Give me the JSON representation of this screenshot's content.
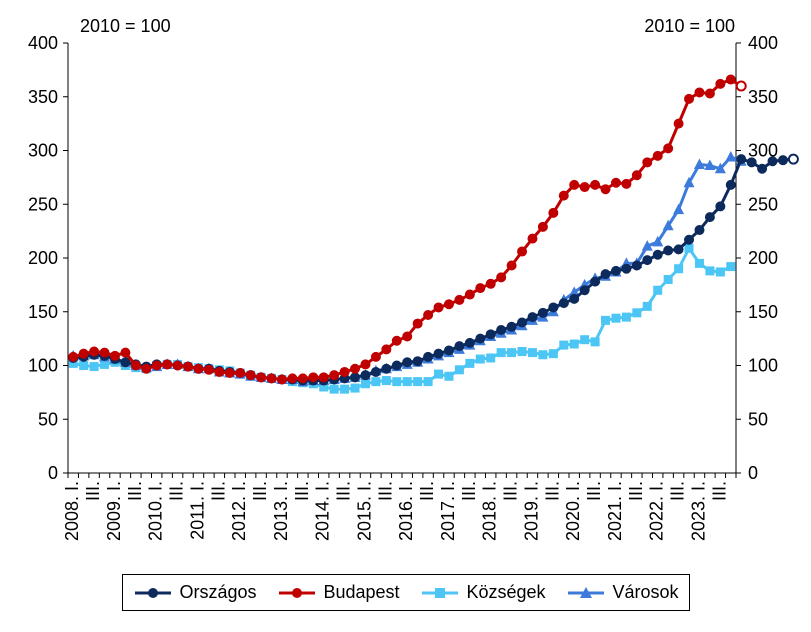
{
  "chart_data": {
    "type": "line",
    "title": "",
    "index_label_left": "2010 = 100",
    "index_label_right": "2010 = 100",
    "ylim": [
      0,
      400
    ],
    "yticks": [
      0,
      50,
      100,
      150,
      200,
      250,
      300,
      350,
      400
    ],
    "year_labels": [
      "2008. I.",
      "2009. I.",
      "2010. I.",
      "2011. I.",
      "2012. I.",
      "2013. I.",
      "2014. I.",
      "2015. I.",
      "2016. I.",
      "2017. I.",
      "2018. I.",
      "2019. I.",
      "2020. I.",
      "2021. I.",
      "2022. I.",
      "2023. I."
    ],
    "mid_label": "III.",
    "grid": false,
    "legend_position": "bottom",
    "series": [
      {
        "name": "Országos",
        "color": "#0d2a5c",
        "marker": "circle",
        "last_hollow": true,
        "values": [
          107,
          108,
          110,
          109,
          106,
          103,
          101,
          99,
          101,
          101,
          100,
          99,
          97,
          97,
          95,
          94,
          93,
          91,
          89,
          88,
          87,
          87,
          86,
          86,
          86,
          87,
          88,
          89,
          91,
          94,
          97,
          100,
          103,
          104,
          108,
          111,
          114,
          118,
          121,
          125,
          129,
          133,
          136,
          140,
          145,
          149,
          154,
          158,
          162,
          170,
          178,
          185,
          188,
          190,
          193,
          198,
          203,
          207,
          208,
          217,
          226,
          238,
          248,
          268,
          292,
          289,
          283,
          290,
          291,
          292
        ]
      },
      {
        "name": "Budapest",
        "color": "#c00000",
        "marker": "circle",
        "last_hollow": true,
        "values": [
          108,
          111,
          113,
          112,
          109,
          112,
          100,
          97,
          100,
          101,
          100,
          99,
          97,
          96,
          94,
          93,
          93,
          91,
          89,
          88,
          87,
          88,
          88,
          89,
          89,
          91,
          94,
          97,
          101,
          108,
          115,
          123,
          127,
          139,
          147,
          154,
          157,
          161,
          166,
          172,
          176,
          182,
          193,
          206,
          218,
          229,
          242,
          258,
          268,
          266,
          268,
          264,
          270,
          269,
          277,
          289,
          295,
          302,
          325,
          348,
          354,
          353,
          362,
          366,
          360
        ]
      },
      {
        "name": "Községek",
        "color": "#4cc6f4",
        "marker": "square",
        "last_hollow": false,
        "values": [
          102,
          100,
          99,
          101,
          103,
          100,
          98,
          97,
          100,
          101,
          101,
          99,
          98,
          97,
          96,
          95,
          93,
          91,
          89,
          88,
          87,
          85,
          84,
          83,
          80,
          78,
          78,
          79,
          83,
          85,
          86,
          85,
          85,
          85,
          85,
          92,
          90,
          96,
          102,
          106,
          107,
          112,
          112,
          113,
          112,
          110,
          111,
          119,
          120,
          124,
          122,
          142,
          144,
          145,
          149,
          155,
          170,
          180,
          190,
          209,
          195,
          188,
          187,
          192
        ]
      },
      {
        "name": "Városok",
        "color": "#3c7bdc",
        "marker": "triangle",
        "last_hollow": false,
        "values": [
          109,
          109,
          110,
          108,
          106,
          103,
          100,
          98,
          99,
          101,
          101,
          99,
          97,
          97,
          94,
          93,
          92,
          90,
          89,
          88,
          87,
          87,
          85,
          86,
          86,
          87,
          88,
          89,
          91,
          95,
          97,
          99,
          101,
          103,
          106,
          109,
          112,
          115,
          119,
          123,
          127,
          130,
          133,
          137,
          142,
          145,
          150,
          161,
          168,
          175,
          181,
          183,
          187,
          195,
          195,
          211,
          215,
          230,
          245,
          270,
          287,
          286,
          283,
          294,
          290
        ]
      }
    ]
  }
}
